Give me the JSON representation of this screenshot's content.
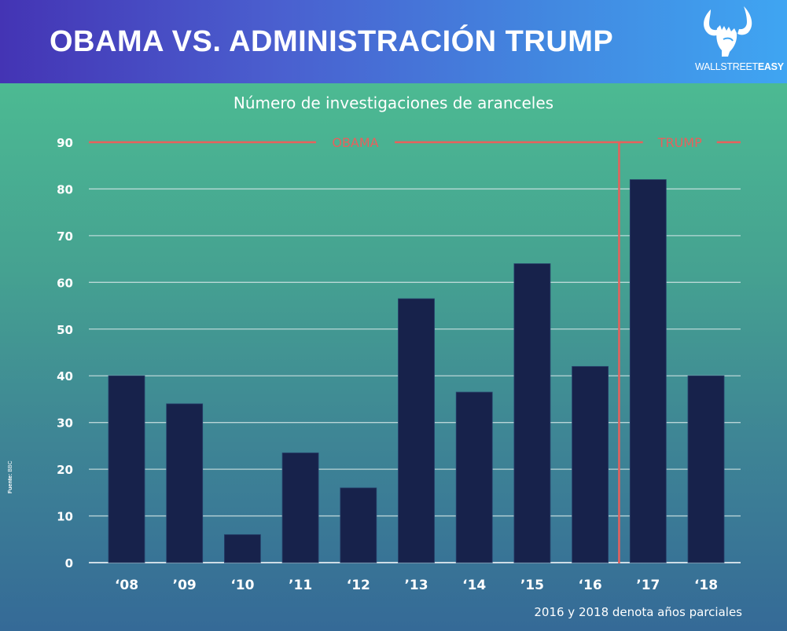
{
  "header": {
    "title": "OBAMA VS. ADMINISTRACIÓN TRUMP",
    "logo": {
      "icon": "bull-horns-fist-icon",
      "text_light": "WALLSTREET",
      "text_bold": "EASY"
    }
  },
  "source": {
    "label": "Fuente:",
    "value": "BBC"
  },
  "footnote": "2016 y 2018 denota años parciales",
  "colors": {
    "bar": "#17224b",
    "period_line": "#e8605c",
    "grid": "#cfe3e3",
    "text": "#ffffff"
  },
  "chart_data": {
    "type": "bar",
    "title": "Número de investigaciones de aranceles",
    "xlabel": "",
    "ylabel": "",
    "categories": [
      "‘08",
      "’09",
      "‘10",
      "’11",
      "‘12",
      "’13",
      "‘14",
      "’15",
      "‘16",
      "’17",
      "‘18"
    ],
    "values": [
      40,
      34,
      6,
      23.5,
      16,
      56.5,
      36.5,
      64,
      42,
      82,
      40
    ],
    "ylim": [
      0,
      90
    ],
    "yticks": [
      0,
      10,
      20,
      30,
      40,
      50,
      60,
      70,
      80,
      90
    ],
    "grid": true,
    "periods": [
      {
        "label": "OBAMA",
        "from_category": "‘08",
        "to_category": "‘16"
      },
      {
        "label": "TRUMP",
        "from_category": "’17",
        "to_category": "‘18"
      }
    ]
  }
}
